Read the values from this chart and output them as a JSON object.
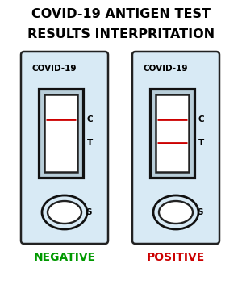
{
  "title_line1": "COVID-19 ANTIGEN TEST",
  "title_line2": "RESULTS INTERPRITATION",
  "title_fontsize": 11.5,
  "title_fontweight": "bold",
  "bg_color": "#ffffff",
  "card_bg_color": "#d8eaf5",
  "card_border_color": "#222222",
  "label_covid": "COVID-19",
  "label_c": "C",
  "label_t": "T",
  "label_s": "S",
  "negative_label": "NEGATIVE",
  "positive_label": "POSITIVE",
  "negative_color": "#009900",
  "positive_color": "#cc0000",
  "result_fontsize": 10,
  "line_color_red": "#cc0000",
  "card_border_lw": 1.8,
  "window_border_lw": 1.8,
  "ellipse_border_lw": 2.0
}
